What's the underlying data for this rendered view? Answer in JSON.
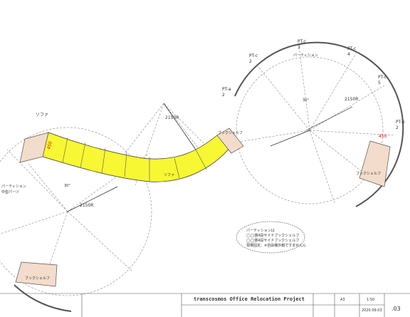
{
  "labels": {
    "sofa": [
      "ソファ",
      "ソファ"
    ],
    "bookshelf": [
      "ブックシェルフ",
      "ブックシェルフ",
      "ブックシェルフ"
    ],
    "partition": "パーティション",
    "partition_left": [
      "パーティション",
      "中型パーツ"
    ],
    "pt": [
      [
        "PT-c",
        "3"
      ],
      [
        "PT-c",
        "2"
      ],
      [
        "PT-c",
        "4"
      ],
      [
        "PT-c",
        "5"
      ],
      [
        "PT-a",
        "2"
      ],
      [
        "PT-b",
        "2"
      ]
    ],
    "radius": [
      "2150R",
      "2150R",
      "2150R"
    ],
    "angle": "30°",
    "offset": "450"
  },
  "note": [
    "パーティションは",
    "◯◯側4段サイドブックシェルフ",
    "◯◯側4段サイドブックシェルフ",
    "現場固定、※自由棚外観ですませんん"
  ],
  "title_block": {
    "project": "transcosmos Office Relocation Project",
    "size": "A3",
    "scale": "1:50",
    "date": "2020.09.03",
    "sheet": ".03"
  }
}
